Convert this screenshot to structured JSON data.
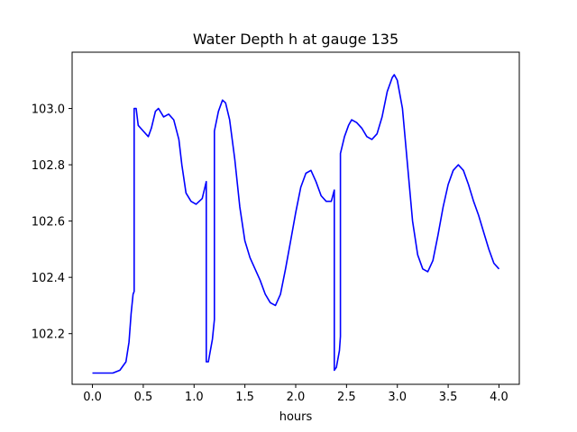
{
  "chart_data": {
    "type": "line",
    "title": "Water Depth h at gauge 135",
    "xlabel": "hours",
    "ylabel": "",
    "xlim": [
      -0.2,
      4.2
    ],
    "ylim": [
      102.02,
      103.2
    ],
    "grid": false,
    "legend": "none",
    "x_ticks": [
      0.0,
      0.5,
      1.0,
      1.5,
      2.0,
      2.5,
      3.0,
      3.5,
      4.0
    ],
    "x_tick_labels": [
      "0.0",
      "0.5",
      "1.0",
      "1.5",
      "2.0",
      "2.5",
      "3.0",
      "3.5",
      "4.0"
    ],
    "y_ticks": [
      102.2,
      102.4,
      102.6,
      102.8,
      103.0
    ],
    "y_tick_labels": [
      "102.2",
      "102.4",
      "102.6",
      "102.8",
      "103.0"
    ],
    "series": [
      {
        "color": "#0000ff",
        "points": [
          [
            0.0,
            102.06
          ],
          [
            0.1,
            102.06
          ],
          [
            0.2,
            102.06
          ],
          [
            0.27,
            102.07
          ],
          [
            0.33,
            102.1
          ],
          [
            0.36,
            102.17
          ],
          [
            0.38,
            102.27
          ],
          [
            0.4,
            102.34
          ],
          [
            0.41,
            102.35
          ],
          [
            0.41,
            103.0
          ],
          [
            0.43,
            103.0
          ],
          [
            0.45,
            102.94
          ],
          [
            0.5,
            102.92
          ],
          [
            0.55,
            102.9
          ],
          [
            0.58,
            102.93
          ],
          [
            0.62,
            102.99
          ],
          [
            0.65,
            103.0
          ],
          [
            0.7,
            102.97
          ],
          [
            0.75,
            102.98
          ],
          [
            0.8,
            102.96
          ],
          [
            0.85,
            102.89
          ],
          [
            0.88,
            102.8
          ],
          [
            0.92,
            102.7
          ],
          [
            0.97,
            102.67
          ],
          [
            1.02,
            102.66
          ],
          [
            1.08,
            102.68
          ],
          [
            1.12,
            102.74
          ],
          [
            1.12,
            102.1
          ],
          [
            1.14,
            102.1
          ],
          [
            1.18,
            102.18
          ],
          [
            1.2,
            102.25
          ],
          [
            1.2,
            102.92
          ],
          [
            1.24,
            102.99
          ],
          [
            1.28,
            103.03
          ],
          [
            1.31,
            103.02
          ],
          [
            1.35,
            102.96
          ],
          [
            1.4,
            102.82
          ],
          [
            1.45,
            102.65
          ],
          [
            1.5,
            102.53
          ],
          [
            1.55,
            102.47
          ],
          [
            1.6,
            102.43
          ],
          [
            1.65,
            102.39
          ],
          [
            1.7,
            102.34
          ],
          [
            1.75,
            102.31
          ],
          [
            1.8,
            102.3
          ],
          [
            1.85,
            102.34
          ],
          [
            1.9,
            102.43
          ],
          [
            1.95,
            102.53
          ],
          [
            2.0,
            102.63
          ],
          [
            2.05,
            102.72
          ],
          [
            2.1,
            102.77
          ],
          [
            2.15,
            102.78
          ],
          [
            2.2,
            102.74
          ],
          [
            2.25,
            102.69
          ],
          [
            2.3,
            102.67
          ],
          [
            2.35,
            102.67
          ],
          [
            2.38,
            102.71
          ],
          [
            2.38,
            102.07
          ],
          [
            2.4,
            102.08
          ],
          [
            2.43,
            102.14
          ],
          [
            2.44,
            102.19
          ],
          [
            2.44,
            102.84
          ],
          [
            2.48,
            102.9
          ],
          [
            2.52,
            102.94
          ],
          [
            2.55,
            102.96
          ],
          [
            2.6,
            102.95
          ],
          [
            2.65,
            102.93
          ],
          [
            2.7,
            102.9
          ],
          [
            2.75,
            102.89
          ],
          [
            2.8,
            102.91
          ],
          [
            2.85,
            102.97
          ],
          [
            2.9,
            103.06
          ],
          [
            2.95,
            103.11
          ],
          [
            2.97,
            103.12
          ],
          [
            3.0,
            103.1
          ],
          [
            3.05,
            103.0
          ],
          [
            3.1,
            102.8
          ],
          [
            3.15,
            102.6
          ],
          [
            3.2,
            102.48
          ],
          [
            3.25,
            102.43
          ],
          [
            3.3,
            102.42
          ],
          [
            3.35,
            102.46
          ],
          [
            3.4,
            102.55
          ],
          [
            3.45,
            102.65
          ],
          [
            3.5,
            102.73
          ],
          [
            3.55,
            102.78
          ],
          [
            3.6,
            102.8
          ],
          [
            3.65,
            102.78
          ],
          [
            3.7,
            102.73
          ],
          [
            3.75,
            102.67
          ],
          [
            3.8,
            102.62
          ],
          [
            3.85,
            102.56
          ],
          [
            3.9,
            102.5
          ],
          [
            3.95,
            102.45
          ],
          [
            4.0,
            102.43
          ]
        ]
      }
    ]
  }
}
